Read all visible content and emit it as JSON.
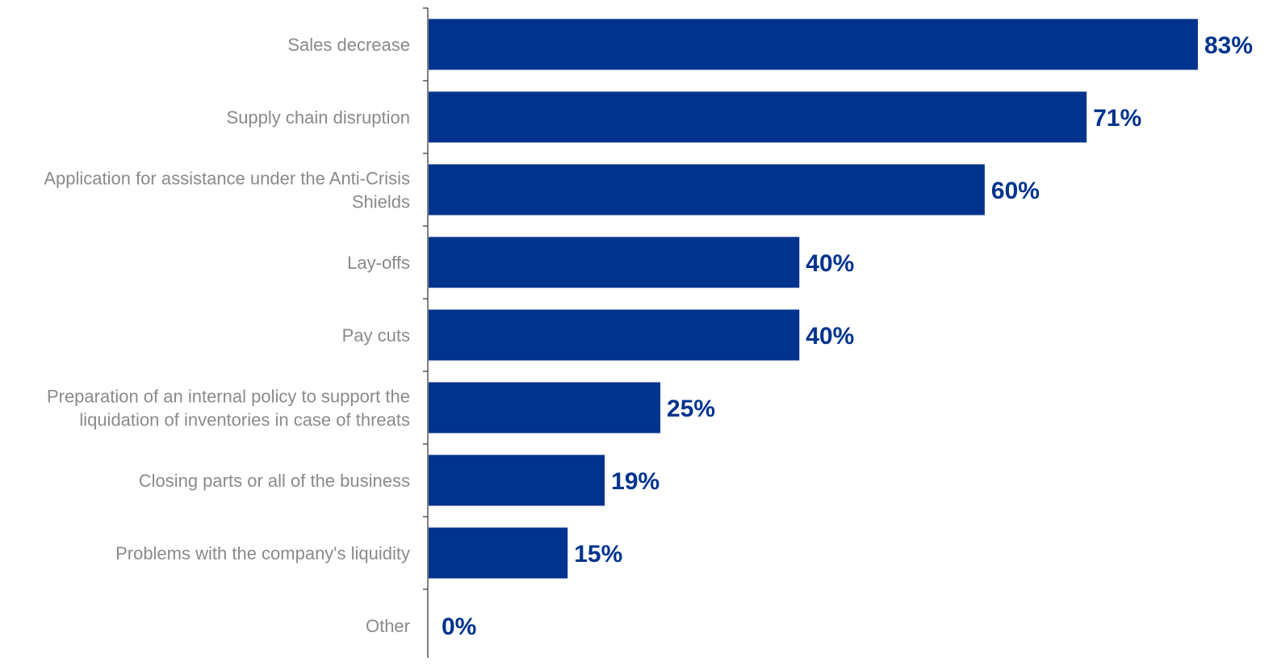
{
  "chart_data": {
    "type": "bar",
    "orientation": "horizontal",
    "categories": [
      [
        "Sales decrease"
      ],
      [
        "Supply chain disruption"
      ],
      [
        "Application for assistance under the Anti-Crisis",
        "Shields"
      ],
      [
        "Lay-offs"
      ],
      [
        "Pay cuts"
      ],
      [
        "Preparation of an internal policy to support the",
        "liquidation of inventories in case of threats"
      ],
      [
        "Closing parts or all of the business"
      ],
      [
        "Problems with the company's liquidity"
      ],
      [
        "Other"
      ]
    ],
    "values": [
      83,
      71,
      60,
      40,
      40,
      25,
      19,
      15,
      0
    ],
    "value_labels": [
      "83%",
      "71%",
      "60%",
      "40%",
      "40%",
      "25%",
      "19%",
      "15%",
      "0%"
    ],
    "unit": "%",
    "xlim": [
      0,
      83
    ],
    "grid": false,
    "legend": "none",
    "colors": {
      "bar": "#00338d",
      "value_label": "#00338d",
      "category_label": "#8a8a8a",
      "axis": "#555555"
    }
  }
}
